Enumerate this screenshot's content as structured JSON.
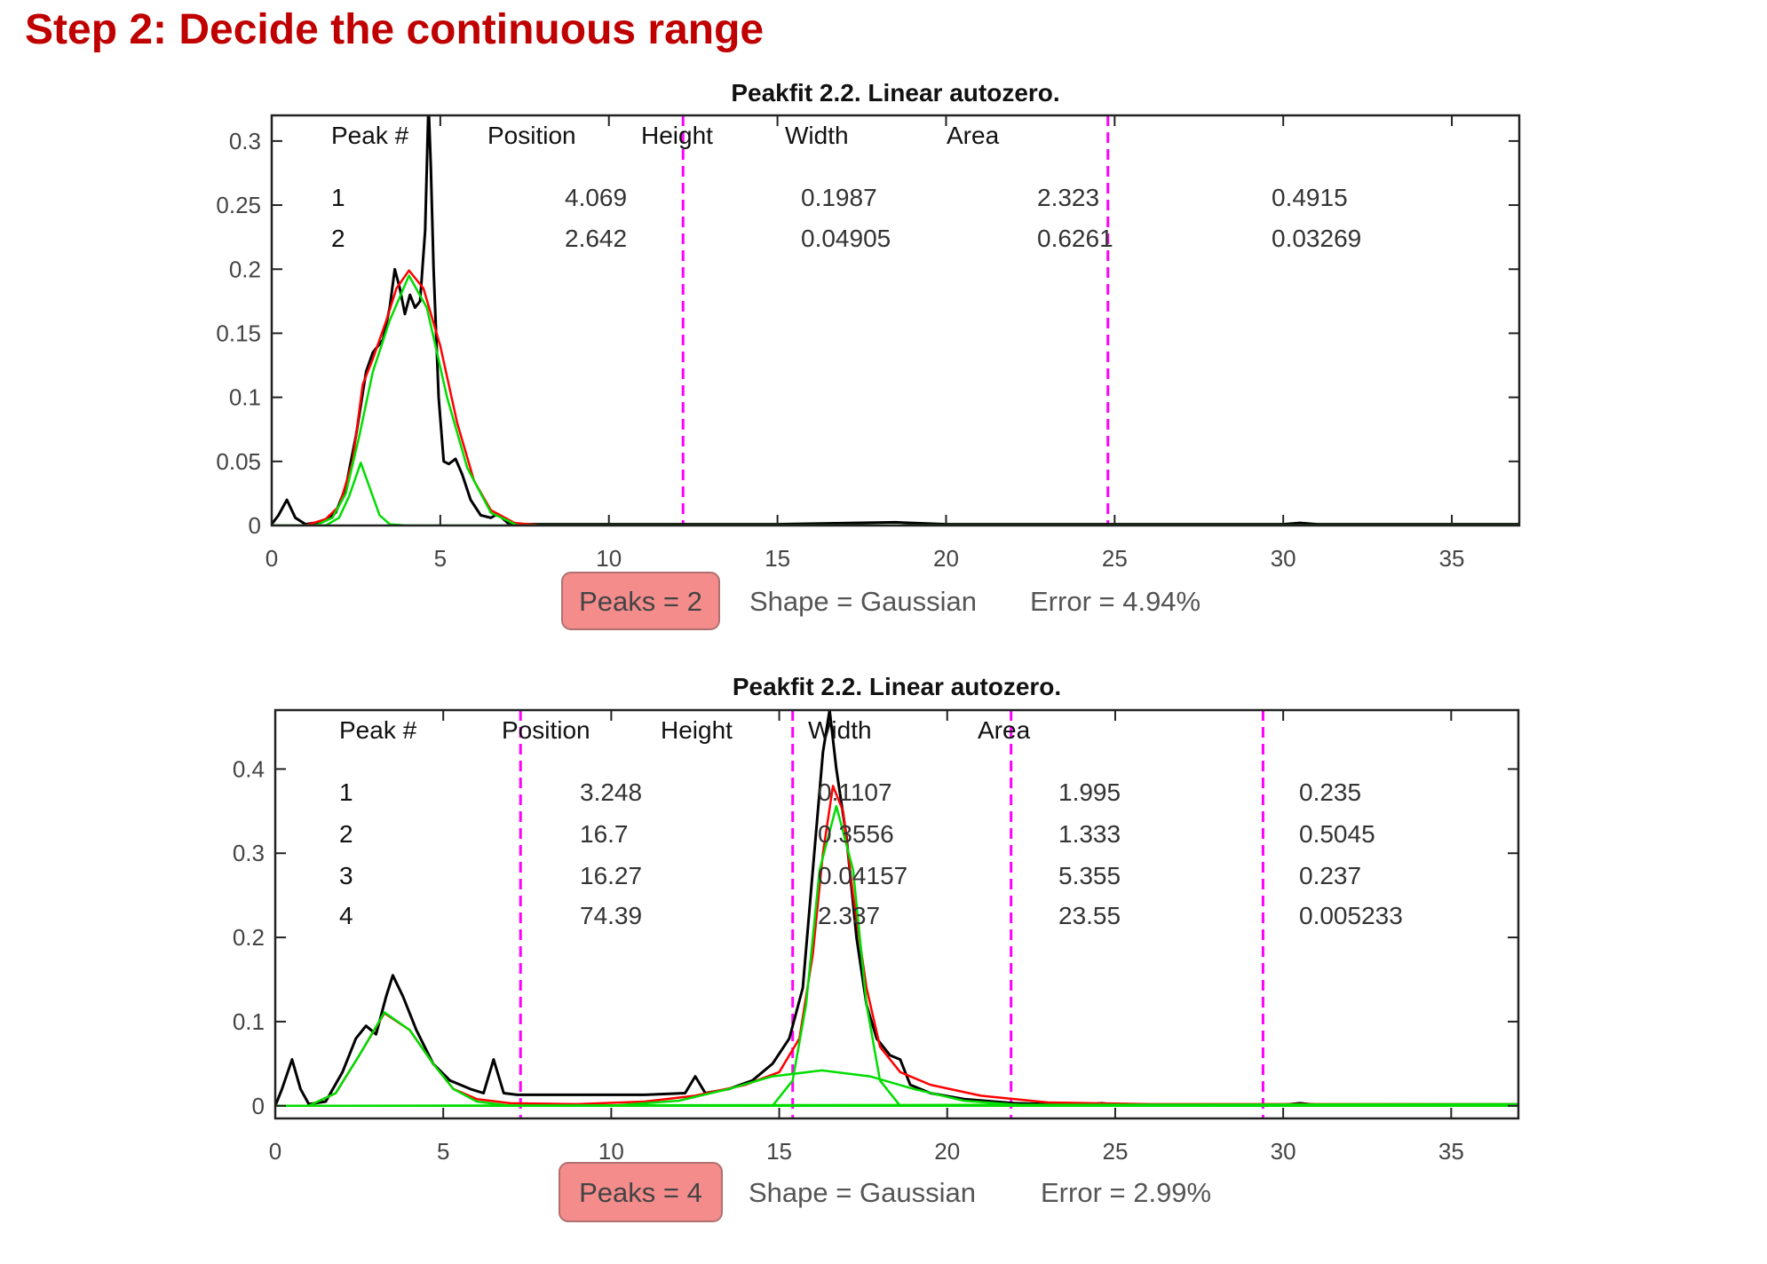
{
  "page": {
    "title": "Step 2: Decide the continuous range"
  },
  "colors": {
    "title": "#c00000",
    "data": "#000000",
    "fit": "#ff0000",
    "component": "#00dd00",
    "range": "#ff00ff",
    "badge_fill": "#f48c8c",
    "badge_border": "#b07070"
  },
  "chart_data": [
    {
      "type": "line",
      "title": "Peakfit 2.2. Linear autozero.",
      "xlim": [
        0,
        37
      ],
      "ylim": [
        0,
        0.32
      ],
      "xticks": [
        "0",
        "5",
        "10",
        "15",
        "20",
        "25",
        "30",
        "35"
      ],
      "yticks": [
        "0",
        "0.05",
        "0.1",
        "0.15",
        "0.2",
        "0.25",
        "0.3"
      ],
      "xtick_values": [
        0,
        5,
        10,
        15,
        20,
        25,
        30,
        35
      ],
      "ytick_values": [
        0,
        0.05,
        0.1,
        0.15,
        0.2,
        0.25,
        0.3
      ],
      "range_markers_x": [
        12.2,
        24.8
      ],
      "table": {
        "headers": [
          "Peak #",
          "Position",
          "Height",
          "Width",
          "Area"
        ],
        "rows": [
          [
            "1",
            "4.069",
            "0.1987",
            "2.323",
            "0.4915"
          ],
          [
            "2",
            "2.642",
            "0.04905",
            "0.6261",
            "0.03269"
          ]
        ]
      },
      "status": {
        "peaks": "Peaks = 2",
        "shape": "Shape = Gaussian",
        "error": "Error = 4.94%"
      },
      "series": [
        {
          "name": "data",
          "color": "#000000",
          "points": [
            [
              0,
              0.001
            ],
            [
              0.2,
              0.008
            ],
            [
              0.45,
              0.02
            ],
            [
              0.7,
              0.006
            ],
            [
              1,
              0.001
            ],
            [
              1.5,
              0.003
            ],
            [
              1.9,
              0.01
            ],
            [
              2.2,
              0.03
            ],
            [
              2.5,
              0.07
            ],
            [
              2.8,
              0.12
            ],
            [
              3.0,
              0.135
            ],
            [
              3.3,
              0.145
            ],
            [
              3.5,
              0.17
            ],
            [
              3.65,
              0.2
            ],
            [
              3.8,
              0.185
            ],
            [
              3.95,
              0.165
            ],
            [
              4.1,
              0.18
            ],
            [
              4.25,
              0.17
            ],
            [
              4.4,
              0.175
            ],
            [
              4.55,
              0.23
            ],
            [
              4.65,
              0.33
            ],
            [
              4.72,
              0.28
            ],
            [
              4.8,
              0.2
            ],
            [
              4.95,
              0.1
            ],
            [
              5.1,
              0.05
            ],
            [
              5.25,
              0.048
            ],
            [
              5.45,
              0.052
            ],
            [
              5.65,
              0.04
            ],
            [
              5.9,
              0.02
            ],
            [
              6.2,
              0.008
            ],
            [
              6.5,
              0.006
            ],
            [
              6.7,
              0.009
            ],
            [
              7,
              0.002
            ],
            [
              7.5,
              0.001
            ],
            [
              9,
              0.001
            ],
            [
              12,
              0.001
            ],
            [
              15,
              0.001
            ],
            [
              18.5,
              0.0025
            ],
            [
              20,
              0.001
            ],
            [
              25,
              0.001
            ],
            [
              30,
              0.001
            ],
            [
              30.5,
              0.002
            ],
            [
              31,
              0.001
            ],
            [
              37,
              0.001
            ]
          ]
        },
        {
          "name": "fit",
          "color": "#ff0000",
          "points": [
            [
              0,
              0
            ],
            [
              1,
              0
            ],
            [
              1.6,
              0.005
            ],
            [
              2.0,
              0.015
            ],
            [
              2.4,
              0.05
            ],
            [
              2.7,
              0.11
            ],
            [
              3.0,
              0.13
            ],
            [
              3.4,
              0.16
            ],
            [
              3.7,
              0.185
            ],
            [
              4.07,
              0.199
            ],
            [
              4.5,
              0.185
            ],
            [
              5.0,
              0.14
            ],
            [
              5.5,
              0.08
            ],
            [
              6.0,
              0.035
            ],
            [
              6.5,
              0.012
            ],
            [
              7.2,
              0.002
            ],
            [
              8,
              0
            ],
            [
              37,
              0
            ]
          ]
        },
        {
          "name": "component-1",
          "color": "#00dd00",
          "points": [
            [
              0,
              0
            ],
            [
              1.3,
              0
            ],
            [
              1.8,
              0.006
            ],
            [
              2.2,
              0.025
            ],
            [
              2.6,
              0.07
            ],
            [
              3.0,
              0.12
            ],
            [
              3.5,
              0.16
            ],
            [
              4.07,
              0.195
            ],
            [
              4.6,
              0.17
            ],
            [
              5.2,
              0.1
            ],
            [
              5.8,
              0.045
            ],
            [
              6.5,
              0.01
            ],
            [
              7.3,
              0
            ],
            [
              37,
              0
            ]
          ]
        },
        {
          "name": "component-2",
          "color": "#00dd00",
          "points": [
            [
              0,
              0
            ],
            [
              1.6,
              0
            ],
            [
              2.0,
              0.006
            ],
            [
              2.3,
              0.023
            ],
            [
              2.642,
              0.049
            ],
            [
              2.9,
              0.03
            ],
            [
              3.2,
              0.008
            ],
            [
              3.5,
              0.001
            ],
            [
              4,
              0
            ],
            [
              37,
              0
            ]
          ]
        }
      ]
    },
    {
      "type": "line",
      "title": "Peakfit 2.2. Linear autozero.",
      "xlim": [
        0,
        37
      ],
      "ylim": [
        -0.015,
        0.47
      ],
      "xticks": [
        "0",
        "5",
        "10",
        "15",
        "20",
        "25",
        "30",
        "35"
      ],
      "yticks": [
        "0",
        "0.1",
        "0.2",
        "0.3",
        "0.4"
      ],
      "xtick_values": [
        0,
        5,
        10,
        15,
        20,
        25,
        30,
        35
      ],
      "ytick_values": [
        0,
        0.1,
        0.2,
        0.3,
        0.4
      ],
      "range_markers_x": [
        7.3,
        15.4,
        21.9,
        29.4
      ],
      "table": {
        "headers": [
          "Peak #",
          "Position",
          "Height",
          "Width",
          "Area"
        ],
        "rows": [
          [
            "1",
            "3.248",
            "0.1107",
            "1.995",
            "0.235"
          ],
          [
            "2",
            "16.7",
            "0.3556",
            "1.333",
            "0.5045"
          ],
          [
            "3",
            "16.27",
            "0.04157",
            "5.355",
            "0.237"
          ],
          [
            "4",
            "74.39",
            "2.337",
            "23.55",
            "0.005233"
          ]
        ]
      },
      "status": {
        "peaks": "Peaks = 4",
        "shape": "Shape = Gaussian",
        "error": "Error = 2.99%"
      },
      "series": [
        {
          "name": "data",
          "color": "#000000",
          "points": [
            [
              0,
              0
            ],
            [
              0.2,
              0.02
            ],
            [
              0.5,
              0.055
            ],
            [
              0.75,
              0.02
            ],
            [
              1,
              0.002
            ],
            [
              1.5,
              0.005
            ],
            [
              2.0,
              0.04
            ],
            [
              2.4,
              0.08
            ],
            [
              2.7,
              0.095
            ],
            [
              3.0,
              0.085
            ],
            [
              3.3,
              0.13
            ],
            [
              3.5,
              0.155
            ],
            [
              3.8,
              0.13
            ],
            [
              4.2,
              0.09
            ],
            [
              4.7,
              0.05
            ],
            [
              5.2,
              0.03
            ],
            [
              5.8,
              0.02
            ],
            [
              6.2,
              0.015
            ],
            [
              6.5,
              0.055
            ],
            [
              6.8,
              0.015
            ],
            [
              7.2,
              0.013
            ],
            [
              9,
              0.013
            ],
            [
              11,
              0.013
            ],
            [
              12.2,
              0.015
            ],
            [
              12.5,
              0.035
            ],
            [
              12.8,
              0.015
            ],
            [
              13.5,
              0.02
            ],
            [
              14.2,
              0.03
            ],
            [
              14.8,
              0.05
            ],
            [
              15.3,
              0.08
            ],
            [
              15.7,
              0.14
            ],
            [
              16.0,
              0.28
            ],
            [
              16.3,
              0.42
            ],
            [
              16.5,
              0.47
            ],
            [
              16.7,
              0.4
            ],
            [
              17.0,
              0.32
            ],
            [
              17.3,
              0.2
            ],
            [
              17.6,
              0.12
            ],
            [
              17.9,
              0.08
            ],
            [
              18.3,
              0.06
            ],
            [
              18.6,
              0.055
            ],
            [
              18.9,
              0.025
            ],
            [
              19.5,
              0.015
            ],
            [
              20.5,
              0.008
            ],
            [
              22,
              0.003
            ],
            [
              24,
              0.001
            ],
            [
              24.6,
              0.003
            ],
            [
              25,
              0.001
            ],
            [
              30,
              0.001
            ],
            [
              30.5,
              0.003
            ],
            [
              31,
              0.001
            ],
            [
              37,
              0.001
            ]
          ]
        },
        {
          "name": "fit",
          "color": "#ff0000",
          "points": [
            [
              0,
              0
            ],
            [
              1,
              0
            ],
            [
              1.8,
              0.015
            ],
            [
              2.5,
              0.06
            ],
            [
              3.25,
              0.11
            ],
            [
              4.0,
              0.09
            ],
            [
              4.7,
              0.05
            ],
            [
              5.3,
              0.02
            ],
            [
              6,
              0.008
            ],
            [
              7,
              0.003
            ],
            [
              9,
              0.002
            ],
            [
              11,
              0.005
            ],
            [
              12.5,
              0.012
            ],
            [
              14,
              0.025
            ],
            [
              15,
              0.04
            ],
            [
              15.6,
              0.08
            ],
            [
              16.0,
              0.18
            ],
            [
              16.3,
              0.3
            ],
            [
              16.6,
              0.38
            ],
            [
              16.9,
              0.35
            ],
            [
              17.2,
              0.25
            ],
            [
              17.6,
              0.14
            ],
            [
              18.0,
              0.07
            ],
            [
              18.6,
              0.04
            ],
            [
              19.5,
              0.025
            ],
            [
              21,
              0.012
            ],
            [
              23,
              0.004
            ],
            [
              26,
              0.002
            ],
            [
              37,
              0.002
            ]
          ]
        },
        {
          "name": "component-1",
          "color": "#00dd00",
          "points": [
            [
              0,
              0
            ],
            [
              1,
              0
            ],
            [
              1.8,
              0.015
            ],
            [
              2.5,
              0.06
            ],
            [
              3.25,
              0.111
            ],
            [
              4.0,
              0.09
            ],
            [
              4.7,
              0.05
            ],
            [
              5.3,
              0.02
            ],
            [
              6,
              0.005
            ],
            [
              7,
              0
            ],
            [
              37,
              0
            ]
          ]
        },
        {
          "name": "component-2",
          "color": "#00dd00",
          "points": [
            [
              0,
              0
            ],
            [
              14.8,
              0
            ],
            [
              15.4,
              0.03
            ],
            [
              15.8,
              0.12
            ],
            [
              16.2,
              0.28
            ],
            [
              16.7,
              0.356
            ],
            [
              17.2,
              0.28
            ],
            [
              17.6,
              0.12
            ],
            [
              18.0,
              0.03
            ],
            [
              18.6,
              0
            ],
            [
              37,
              0
            ]
          ]
        },
        {
          "name": "component-3",
          "color": "#00dd00",
          "points": [
            [
              0,
              0
            ],
            [
              10,
              0
            ],
            [
              12,
              0.006
            ],
            [
              13.5,
              0.02
            ],
            [
              14.8,
              0.035
            ],
            [
              16.27,
              0.042
            ],
            [
              17.7,
              0.035
            ],
            [
              19,
              0.02
            ],
            [
              20.5,
              0.006
            ],
            [
              22.5,
              0
            ],
            [
              37,
              0
            ]
          ]
        },
        {
          "name": "component-4",
          "color": "#00dd00",
          "points": [
            [
              0,
              0
            ],
            [
              37,
              0.002
            ]
          ]
        }
      ]
    }
  ]
}
